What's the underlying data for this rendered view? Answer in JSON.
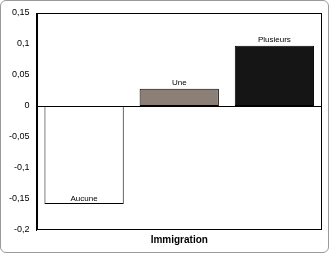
{
  "chart_data": {
    "type": "bar",
    "x_label": "Immigration",
    "categories": [
      "Aucune",
      "Une",
      "Plusieurs"
    ],
    "values": [
      -0.158,
      0.028,
      0.097
    ],
    "colors": [
      "#ffffff",
      "#8c7f76",
      "#151515"
    ],
    "ylim": [
      -0.2,
      0.15
    ],
    "yticks": [
      {
        "value": -0.2,
        "label": "-0,2"
      },
      {
        "value": -0.15,
        "label": "-0,15"
      },
      {
        "value": -0.1,
        "label": "-0,1"
      },
      {
        "value": -0.05,
        "label": "-0,05"
      },
      0,
      {
        "value": 0.05,
        "label": "0,05"
      },
      {
        "value": 0.1,
        "label": "0,1"
      },
      {
        "value": 0.15,
        "label": "0,15"
      }
    ],
    "grid": false,
    "tick_labels": "y"
  }
}
